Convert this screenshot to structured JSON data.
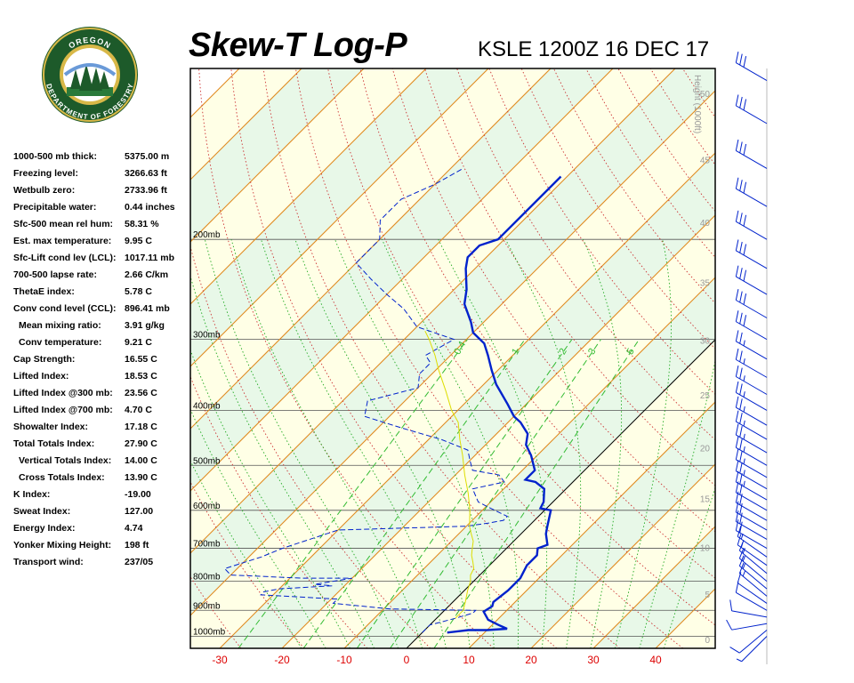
{
  "header": {
    "title": "Skew-T Log-P",
    "station_time": "KSLE 1200Z 16 DEC 17"
  },
  "logo": {
    "text_top": "OREGON",
    "text_bottom": "DEPARTMENT OF FORESTRY"
  },
  "indices": [
    {
      "label": "1000-500 mb thick:",
      "value": "5375.00 m"
    },
    {
      "label": "Freezing level:",
      "value": "3266.63 ft"
    },
    {
      "label": "Wetbulb zero:",
      "value": "2733.96 ft"
    },
    {
      "label": "Precipitable water:",
      "value": "0.44 inches"
    },
    {
      "label": "Sfc-500 mean rel hum:",
      "value": "58.31 %"
    },
    {
      "label": "Est. max temperature:",
      "value": "9.95 C"
    },
    {
      "label": "Sfc-Lift cond lev (LCL):",
      "value": "1017.11 mb"
    },
    {
      "label": "700-500 lapse rate:",
      "value": "2.66 C/km"
    },
    {
      "label": "ThetaE index:",
      "value": "5.78 C"
    },
    {
      "label": "Conv cond level (CCL):",
      "value": "896.41 mb"
    },
    {
      "label": "Mean mixing ratio:",
      "value": "3.91 g/kg",
      "indent": true
    },
    {
      "label": "Conv temperature:",
      "value": "9.21 C",
      "indent": true
    },
    {
      "label": "Cap Strength:",
      "value": "16.55 C"
    },
    {
      "label": "Lifted Index:",
      "value": "18.53 C"
    },
    {
      "label": "Lifted Index @300 mb:",
      "value": "23.56 C"
    },
    {
      "label": "Lifted Index @700 mb:",
      "value": "4.70 C"
    },
    {
      "label": "Showalter Index:",
      "value": "17.18 C"
    },
    {
      "label": "Total Totals Index:",
      "value": "27.90 C"
    },
    {
      "label": "Vertical Totals Index:",
      "value": "14.00 C",
      "indent": true
    },
    {
      "label": "Cross Totals Index:",
      "value": "13.90 C",
      "indent": true
    },
    {
      "label": "K Index:",
      "value": "-19.00"
    },
    {
      "label": "Sweat Index:",
      "value": "127.00"
    },
    {
      "label": "Energy Index:",
      "value": "4.74"
    },
    {
      "label": "Yonker Mixing Height:",
      "value": "198 ft"
    },
    {
      "label": "Transport wind:",
      "value": "237/05"
    }
  ],
  "chart_data": {
    "type": "line",
    "xlabel": "",
    "ylabel": "",
    "x_ticks": [
      -30,
      -20,
      -10,
      0,
      10,
      20,
      30,
      40
    ],
    "pressure_levels": [
      {
        "p": 200,
        "label": "200mb"
      },
      {
        "p": 300,
        "label": "300mb"
      },
      {
        "p": 400,
        "label": "400mb"
      },
      {
        "p": 500,
        "label": "500mb"
      },
      {
        "p": 600,
        "label": "600mb"
      },
      {
        "p": 700,
        "label": "700mb"
      },
      {
        "p": 800,
        "label": "800mb"
      },
      {
        "p": 900,
        "label": "900mb"
      },
      {
        "p": 1000,
        "label": "1000mb"
      }
    ],
    "height_axis_label": "Height (1000ft)",
    "height_ticks": [
      0,
      5,
      10,
      15,
      20,
      25,
      30,
      35,
      40,
      45,
      50
    ],
    "mixing_ratio_labels": [
      "0.4",
      "1",
      "2",
      "3",
      "5"
    ],
    "series": [
      {
        "role": "temperature",
        "color": "#0022cc",
        "points": [
          [
            985,
            4
          ],
          [
            975,
            7
          ],
          [
            975,
            10
          ],
          [
            970,
            13
          ],
          [
            955,
            11
          ],
          [
            935,
            8.5
          ],
          [
            905,
            6.5
          ],
          [
            885,
            7
          ],
          [
            870,
            6.5
          ],
          [
            830,
            7
          ],
          [
            790,
            7
          ],
          [
            750,
            6
          ],
          [
            720,
            6
          ],
          [
            700,
            5
          ],
          [
            690,
            6
          ],
          [
            660,
            4
          ],
          [
            640,
            3
          ],
          [
            600,
            1
          ],
          [
            595,
            -1
          ],
          [
            580,
            -1.5
          ],
          [
            550,
            -3.5
          ],
          [
            535,
            -6
          ],
          [
            530,
            -8
          ],
          [
            510,
            -8
          ],
          [
            480,
            -11
          ],
          [
            460,
            -13.5
          ],
          [
            440,
            -15
          ],
          [
            420,
            -18
          ],
          [
            410,
            -20
          ],
          [
            390,
            -23
          ],
          [
            360,
            -28
          ],
          [
            340,
            -31
          ],
          [
            320,
            -34
          ],
          [
            305,
            -36.5
          ],
          [
            292,
            -40
          ],
          [
            280,
            -42
          ],
          [
            260,
            -46
          ],
          [
            245,
            -48
          ],
          [
            225,
            -51.5
          ],
          [
            215,
            -53
          ],
          [
            205,
            -53
          ],
          [
            200,
            -51
          ],
          [
            185,
            -51
          ],
          [
            170,
            -51
          ],
          [
            155,
            -51
          ]
        ]
      },
      {
        "role": "dewpoint",
        "color": "#0022cc",
        "points": [
          [
            985,
            0
          ],
          [
            955,
            0
          ],
          [
            930,
            3
          ],
          [
            910,
            5
          ],
          [
            900,
            5
          ],
          [
            895,
            -9
          ],
          [
            875,
            -19
          ],
          [
            860,
            -19
          ],
          [
            845,
            -32
          ],
          [
            835,
            -32
          ],
          [
            825,
            -30
          ],
          [
            815,
            -22
          ],
          [
            810,
            -25
          ],
          [
            790,
            -20
          ],
          [
            790,
            -28
          ],
          [
            780,
            -40
          ],
          [
            760,
            -42
          ],
          [
            725,
            -38
          ],
          [
            700,
            -36
          ],
          [
            650,
            -30
          ],
          [
            640,
            -10
          ],
          [
            632,
            -7
          ],
          [
            625,
            -5
          ],
          [
            615,
            -5
          ],
          [
            590,
            -10
          ],
          [
            580,
            -12
          ],
          [
            550,
            -15
          ],
          [
            535,
            -11
          ],
          [
            520,
            -13
          ],
          [
            510,
            -18
          ],
          [
            490,
            -20
          ],
          [
            470,
            -22
          ],
          [
            450,
            -28
          ],
          [
            430,
            -36
          ],
          [
            410,
            -44
          ],
          [
            385,
            -46
          ],
          [
            365,
            -40
          ],
          [
            345,
            -42
          ],
          [
            330,
            -42
          ],
          [
            320,
            -44
          ],
          [
            300,
            -42
          ],
          [
            285,
            -50
          ],
          [
            265,
            -55
          ],
          [
            250,
            -60
          ],
          [
            235,
            -65
          ],
          [
            220,
            -70
          ],
          [
            200,
            -70
          ],
          [
            185,
            -73
          ],
          [
            170,
            -73
          ],
          [
            160,
            -70
          ],
          [
            150,
            -68
          ]
        ]
      },
      {
        "role": "parcel",
        "color": "#dddd00",
        "points": [
          [
            930,
            3
          ],
          [
            900,
            3
          ],
          [
            870,
            2
          ],
          [
            830,
            0.5
          ],
          [
            800,
            -0.5
          ],
          [
            780,
            -1.5
          ],
          [
            760,
            -2
          ],
          [
            740,
            -3.2
          ],
          [
            720,
            -4.5
          ],
          [
            700,
            -5.5
          ],
          [
            680,
            -6.5
          ],
          [
            660,
            -8
          ],
          [
            640,
            -9.5
          ],
          [
            600,
            -12
          ],
          [
            560,
            -15
          ],
          [
            520,
            -18.5
          ],
          [
            480,
            -22
          ],
          [
            450,
            -25
          ],
          [
            420,
            -28
          ],
          [
            400,
            -31
          ],
          [
            370,
            -35
          ],
          [
            340,
            -39.5
          ],
          [
            320,
            -42.5
          ],
          [
            300,
            -46
          ],
          [
            290,
            -48
          ]
        ]
      }
    ],
    "wind_barbs": [
      {
        "p": 1000,
        "dir": 225,
        "spd": 5
      },
      {
        "p": 975,
        "dir": 230,
        "spd": 10
      },
      {
        "p": 950,
        "dir": 260,
        "spd": 10
      },
      {
        "p": 925,
        "dir": 280,
        "spd": 10
      },
      {
        "p": 900,
        "dir": 300,
        "spd": 10
      },
      {
        "p": 875,
        "dir": 305,
        "spd": 10
      },
      {
        "p": 850,
        "dir": 310,
        "spd": 15
      },
      {
        "p": 825,
        "dir": 310,
        "spd": 15
      },
      {
        "p": 800,
        "dir": 310,
        "spd": 15
      },
      {
        "p": 775,
        "dir": 310,
        "spd": 15
      },
      {
        "p": 750,
        "dir": 305,
        "spd": 15
      },
      {
        "p": 725,
        "dir": 305,
        "spd": 15
      },
      {
        "p": 700,
        "dir": 300,
        "spd": 20
      },
      {
        "p": 675,
        "dir": 300,
        "spd": 20
      },
      {
        "p": 650,
        "dir": 300,
        "spd": 20
      },
      {
        "p": 625,
        "dir": 300,
        "spd": 20
      },
      {
        "p": 600,
        "dir": 300,
        "spd": 20
      },
      {
        "p": 575,
        "dir": 300,
        "spd": 25
      },
      {
        "p": 550,
        "dir": 300,
        "spd": 25
      },
      {
        "p": 525,
        "dir": 300,
        "spd": 25
      },
      {
        "p": 500,
        "dir": 300,
        "spd": 25
      },
      {
        "p": 475,
        "dir": 300,
        "spd": 25
      },
      {
        "p": 450,
        "dir": 300,
        "spd": 25
      },
      {
        "p": 425,
        "dir": 300,
        "spd": 25
      },
      {
        "p": 400,
        "dir": 300,
        "spd": 25
      },
      {
        "p": 375,
        "dir": 300,
        "spd": 25
      },
      {
        "p": 350,
        "dir": 300,
        "spd": 25
      },
      {
        "p": 325,
        "dir": 300,
        "spd": 25
      },
      {
        "p": 300,
        "dir": 300,
        "spd": 30
      },
      {
        "p": 275,
        "dir": 300,
        "spd": 30
      },
      {
        "p": 250,
        "dir": 300,
        "spd": 30
      },
      {
        "p": 225,
        "dir": 300,
        "spd": 30
      },
      {
        "p": 200,
        "dir": 300,
        "spd": 30
      },
      {
        "p": 175,
        "dir": 300,
        "spd": 30
      },
      {
        "p": 150,
        "dir": 300,
        "spd": 30
      },
      {
        "p": 125,
        "dir": 300,
        "spd": 30
      },
      {
        "p": 105,
        "dir": 300,
        "spd": 30
      }
    ],
    "colors": {
      "temperature": "#0022cc",
      "dewpoint": "#0022cc",
      "parcel": "#dddd00",
      "isotherm": "#e08a20",
      "dry_adiabat": "#cc3333",
      "moist_adiabat": "#22aa22",
      "mixing_ratio": "#33bb33",
      "zero_isotherm": "#000000",
      "band_yellow": "#ffffe6",
      "band_green": "#e8f8e8",
      "tick_labels": "#dd0000",
      "wind_barbs": "#0022cc"
    }
  }
}
